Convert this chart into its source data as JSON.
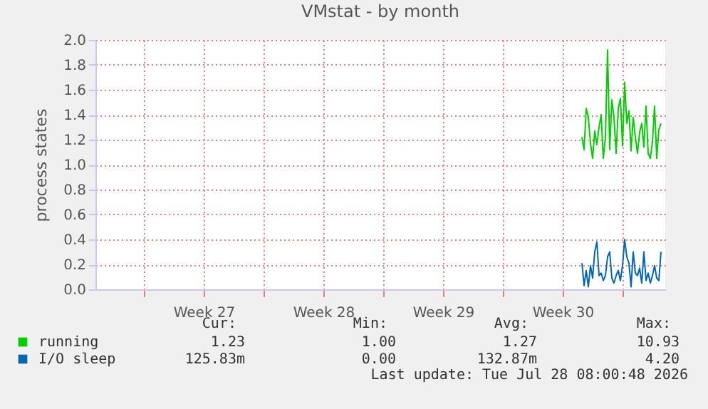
{
  "chart_data": {
    "type": "line",
    "title": "VMstat - by month",
    "ylabel": "process states",
    "x": [
      "2026-07-23T15:00",
      "2026-07-23T18:00",
      "2026-07-23T21:00",
      "2026-07-24T00:00",
      "2026-07-24T03:00",
      "2026-07-24T06:00",
      "2026-07-24T09:00",
      "2026-07-24T12:00",
      "2026-07-24T15:00",
      "2026-07-24T18:00",
      "2026-07-24T21:00",
      "2026-07-25T00:00",
      "2026-07-25T03:00",
      "2026-07-25T06:00",
      "2026-07-25T09:00",
      "2026-07-25T12:00",
      "2026-07-25T15:00",
      "2026-07-25T18:00",
      "2026-07-25T21:00",
      "2026-07-26T00:00",
      "2026-07-26T03:00",
      "2026-07-26T06:00",
      "2026-07-26T09:00",
      "2026-07-26T12:00",
      "2026-07-26T15:00",
      "2026-07-26T18:00",
      "2026-07-26T21:00",
      "2026-07-27T00:00",
      "2026-07-27T03:00",
      "2026-07-27T06:00",
      "2026-07-27T09:00",
      "2026-07-27T12:00",
      "2026-07-27T15:00",
      "2026-07-27T18:00",
      "2026-07-27T21:00",
      "2026-07-28T00:00",
      "2026-07-28T03:00",
      "2026-07-28T06:00"
    ],
    "series": [
      {
        "name": "running",
        "color": "#00cc00",
        "values": [
          1.22,
          1.12,
          1.45,
          1.38,
          1.17,
          1.05,
          1.27,
          1.16,
          1.3,
          1.4,
          1.05,
          1.22,
          1.92,
          1.12,
          1.52,
          1.38,
          1.09,
          1.45,
          1.53,
          1.15,
          1.66,
          1.33,
          1.43,
          1.11,
          1.38,
          1.22,
          1.09,
          1.26,
          1.33,
          1.14,
          1.47,
          1.09,
          1.05,
          1.18,
          1.47,
          1.05,
          1.28,
          1.33
        ]
      },
      {
        "name": "I/O sleep",
        "color": "#0066b3",
        "values": [
          0.21,
          0.03,
          0.15,
          0.02,
          0.19,
          0.09,
          0.3,
          0.38,
          0.11,
          0.13,
          0.07,
          0.11,
          0.26,
          0.3,
          0.09,
          0.05,
          0.11,
          0.15,
          0.07,
          0.19,
          0.4,
          0.26,
          0.21,
          0.02,
          0.3,
          0.13,
          0.11,
          0.17,
          0.05,
          0.3,
          0.07,
          0.13,
          0.05,
          0.11,
          0.19,
          0.09,
          0.07,
          0.3
        ]
      }
    ],
    "xlim": [
      "2026-06-25T04:00",
      "2026-07-28T12:00"
    ],
    "xticks": [
      {
        "value": "2026-06-28T00:00",
        "label": null
      },
      {
        "value": "2026-07-01T12:00",
        "label": "Week 27"
      },
      {
        "value": "2026-07-05T00:00",
        "label": null
      },
      {
        "value": "2026-07-08T12:00",
        "label": "Week 28"
      },
      {
        "value": "2026-07-12T00:00",
        "label": null
      },
      {
        "value": "2026-07-15T12:00",
        "label": "Week 29"
      },
      {
        "value": "2026-07-19T00:00",
        "label": null
      },
      {
        "value": "2026-07-22T12:00",
        "label": "Week 30"
      },
      {
        "value": "2026-07-26T00:00",
        "label": null
      }
    ],
    "ylim": [
      0,
      2.0
    ],
    "yticks": [
      {
        "value": 0,
        "label": "0.0"
      },
      {
        "value": 0.2,
        "label": "0.2"
      },
      {
        "value": 0.4,
        "label": "0.4"
      },
      {
        "value": 0.6,
        "label": "0.6"
      },
      {
        "value": 0.8,
        "label": "0.8"
      },
      {
        "value": 1.0,
        "label": "1.0"
      },
      {
        "value": 1.2,
        "label": "1.2"
      },
      {
        "value": 1.4,
        "label": "1.4"
      },
      {
        "value": 1.6,
        "label": "1.6"
      },
      {
        "value": 1.8,
        "label": "1.8"
      },
      {
        "value": 2.0,
        "label": "2.0"
      }
    ],
    "grid": true,
    "legend": "bottom left",
    "annotations": [
      "Cur:",
      "Min:",
      "Avg:",
      "Max:",
      "1.23",
      "1.00",
      "1.27",
      "10.93",
      "125.83m",
      "0.00",
      "132.87m",
      "4.20",
      "Last update: Tue Jul 28 08:00:48 2026"
    ]
  }
}
